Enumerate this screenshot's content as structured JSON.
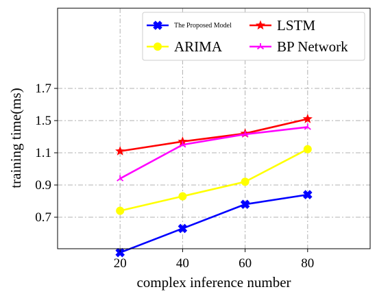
{
  "chart_data": {
    "type": "line",
    "xlabel": "complex inference number",
    "ylabel": "training time(ms)",
    "x": [
      20,
      40,
      60,
      80
    ],
    "xticks": [
      20,
      40,
      60,
      80
    ],
    "yticks": [
      "0.7",
      "0.9",
      "1.1",
      "1.5",
      "1.7"
    ],
    "xlim": [
      0,
      100
    ],
    "grid": true,
    "legend_position": "top-right",
    "series": [
      {
        "name": "The Proposed Model",
        "color": "#0000ff",
        "marker": "x-filled",
        "values": [
          0.48,
          0.63,
          0.78,
          0.84
        ]
      },
      {
        "name": "LSTM",
        "color": "#ff0000",
        "marker": "star",
        "values": [
          1.12,
          1.24,
          1.34,
          1.51
        ]
      },
      {
        "name": "ARIMA",
        "color": "#ffff00",
        "marker": "circle",
        "values": [
          0.74,
          0.83,
          0.92,
          1.145
        ]
      },
      {
        "name": "BP Network",
        "color": "#ff00ff",
        "marker": "tri",
        "values": [
          0.94,
          1.2,
          1.33,
          1.42
        ]
      }
    ]
  }
}
